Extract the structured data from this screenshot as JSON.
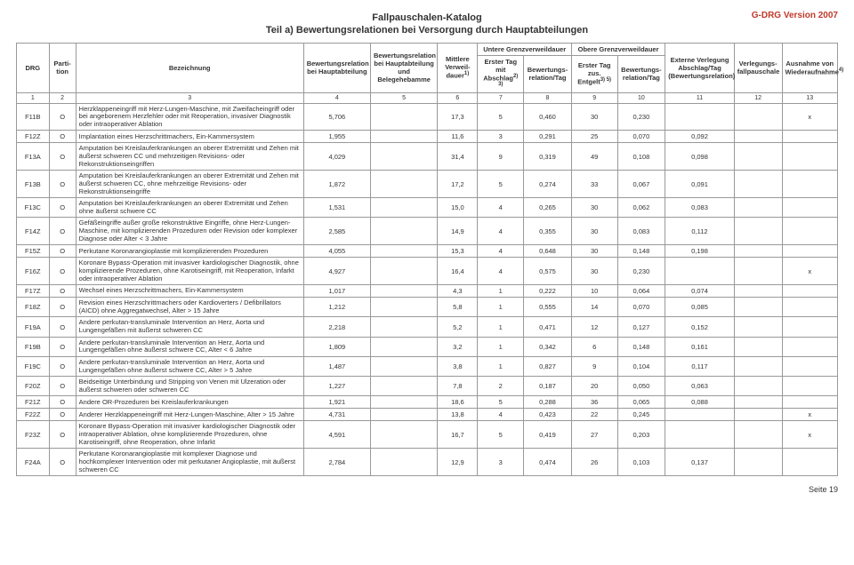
{
  "meta": {
    "version": "G-DRG Version 2007",
    "title1": "Fallpauschalen-Katalog",
    "title2": "Teil a) Bewertungsrelationen bei Versorgung durch Hauptabteilungen",
    "footer": "Seite 19"
  },
  "header": {
    "c1": "DRG",
    "c2": "Parti-\ntion",
    "c3": "Bezeichnung",
    "c4": "Bewertungsrelation bei Hauptabteilung",
    "c5": "Bewertungsrelation bei Hauptabteilung und Belegehebamme",
    "c6": "Mittlere Verweil-\ndauer",
    "g1": "Untere Grenzverweildauer",
    "c7": "Erster Tag mit Abschlag",
    "c8": "Bewertungs-\nrelation/Tag",
    "g2": "Obere Grenzverweildauer",
    "c9": "Erster Tag zus. Entgelt",
    "c10": "Bewertungs-\nrelation/Tag",
    "c11": "Externe Verlegung Abschlag/Tag (Bewertungsrelation)",
    "c12": "Verlegungs-\nfallpauschale",
    "c13": "Ausnahme von Wiederaufnahme",
    "sup6": "1)",
    "sup7": "2) 3)",
    "sup9": "3) 5)",
    "sup13": "4)"
  },
  "colnums": [
    "1",
    "2",
    "3",
    "4",
    "5",
    "6",
    "7",
    "8",
    "9",
    "10",
    "11",
    "12",
    "13"
  ],
  "rows": [
    {
      "drg": "F11B",
      "part": "O",
      "desc": "Herzklappeneingriff mit Herz-Lungen-Maschine, mit Zweifacheingriff oder bei angeborenem Herzfehler oder mit Reoperation, invasiver Diagnostik oder intraoperativer Ablation",
      "c4": "5,706",
      "c5": "",
      "c6": "17,3",
      "c7": "5",
      "c8": "0,460",
      "c9": "30",
      "c10": "0,230",
      "c11": "",
      "c12": "",
      "c13": "x",
      "sec": true
    },
    {
      "drg": "F12Z",
      "part": "O",
      "desc": "Implantation eines Herzschrittmachers, Ein-Kammersystem",
      "c4": "1,955",
      "c5": "",
      "c6": "11,6",
      "c7": "3",
      "c8": "0,291",
      "c9": "25",
      "c10": "0,070",
      "c11": "0,092",
      "c12": "",
      "c13": "",
      "sec": true
    },
    {
      "drg": "F13A",
      "part": "O",
      "desc": "Amputation bei Kreislauferkrankungen an oberer Extremität und Zehen mit äußerst schweren CC und mehrzeitigen Revisions- oder Rekonstruktionseingriffen",
      "c4": "4,029",
      "c5": "",
      "c6": "31,4",
      "c7": "9",
      "c8": "0,319",
      "c9": "49",
      "c10": "0,108",
      "c11": "0,098",
      "c12": "",
      "c13": ""
    },
    {
      "drg": "F13B",
      "part": "O",
      "desc": "Amputation bei Kreislauferkrankungen an oberer Extremität und Zehen mit äußerst schweren CC, ohne mehrzeitige Revisions- oder Rekonstruktionseingriffe",
      "c4": "1,872",
      "c5": "",
      "c6": "17,2",
      "c7": "5",
      "c8": "0,274",
      "c9": "33",
      "c10": "0,067",
      "c11": "0,091",
      "c12": "",
      "c13": ""
    },
    {
      "drg": "F13C",
      "part": "O",
      "desc": "Amputation bei Kreislauferkrankungen an oberer Extremität und Zehen ohne äußerst schwere CC",
      "c4": "1,531",
      "c5": "",
      "c6": "15,0",
      "c7": "4",
      "c8": "0,265",
      "c9": "30",
      "c10": "0,062",
      "c11": "0,083",
      "c12": "",
      "c13": ""
    },
    {
      "drg": "F14Z",
      "part": "O",
      "desc": "Gefäßeingriffe außer große rekonstruktive Eingriffe, ohne Herz-Lungen-Maschine, mit komplizierenden Prozeduren oder Revision oder komplexer Diagnose oder Alter < 3 Jahre",
      "c4": "2,585",
      "c5": "",
      "c6": "14,9",
      "c7": "4",
      "c8": "0,355",
      "c9": "30",
      "c10": "0,083",
      "c11": "0,112",
      "c12": "",
      "c13": ""
    },
    {
      "drg": "F15Z",
      "part": "O",
      "desc": "Perkutane Koronarangioplastie mit komplizierenden Prozeduren",
      "c4": "4,055",
      "c5": "",
      "c6": "15,3",
      "c7": "4",
      "c8": "0,648",
      "c9": "30",
      "c10": "0,148",
      "c11": "0,198",
      "c12": "",
      "c13": "",
      "sec": true
    },
    {
      "drg": "F16Z",
      "part": "O",
      "desc": "Koronare Bypass-Operation mit invasiver kardiologischer Diagnostik, ohne komplizierende Prozeduren, ohne Karotiseingriff, mit Reoperation, Infarkt oder intraoperativer Ablation",
      "c4": "4,927",
      "c5": "",
      "c6": "16,4",
      "c7": "4",
      "c8": "0,575",
      "c9": "30",
      "c10": "0,230",
      "c11": "",
      "c12": "",
      "c13": "x"
    },
    {
      "drg": "F17Z",
      "part": "O",
      "desc": "Wechsel eines Herzschrittmachers, Ein-Kammersystem",
      "c4": "1,017",
      "c5": "",
      "c6": "4,3",
      "c7": "1",
      "c8": "0,222",
      "c9": "10",
      "c10": "0,064",
      "c11": "0,074",
      "c12": "",
      "c13": ""
    },
    {
      "drg": "F18Z",
      "part": "O",
      "desc": "Revision eines Herzschrittmachers oder Kardioverters / Defibrillators (AICD) ohne Aggregatwechsel, Alter > 15 Jahre",
      "c4": "1,212",
      "c5": "",
      "c6": "5,8",
      "c7": "1",
      "c8": "0,555",
      "c9": "14",
      "c10": "0,070",
      "c11": "0,085",
      "c12": "",
      "c13": ""
    },
    {
      "drg": "F19A",
      "part": "O",
      "desc": "Andere perkutan-transluminale Intervention an Herz, Aorta und Lungengefäßen mit äußerst schweren CC",
      "c4": "2,218",
      "c5": "",
      "c6": "5,2",
      "c7": "1",
      "c8": "0,471",
      "c9": "12",
      "c10": "0,127",
      "c11": "0,152",
      "c12": "",
      "c13": ""
    },
    {
      "drg": "F19B",
      "part": "O",
      "desc": "Andere perkutan-transluminale Intervention an Herz, Aorta und Lungengefäßen ohne äußerst schwere CC, Alter < 6 Jahre",
      "c4": "1,809",
      "c5": "",
      "c6": "3,2",
      "c7": "1",
      "c8": "0,342",
      "c9": "6",
      "c10": "0,148",
      "c11": "0,161",
      "c12": "",
      "c13": ""
    },
    {
      "drg": "F19C",
      "part": "O",
      "desc": "Andere perkutan-transluminale Intervention an Herz, Aorta und Lungengefäßen ohne äußerst schwere CC, Alter > 5 Jahre",
      "c4": "1,487",
      "c5": "",
      "c6": "3,8",
      "c7": "1",
      "c8": "0,827",
      "c9": "9",
      "c10": "0,104",
      "c11": "0,117",
      "c12": "",
      "c13": "",
      "sec": true
    },
    {
      "drg": "F20Z",
      "part": "O",
      "desc": "Beidseitige Unterbindung und Stripping von Venen mit Ulzeration oder äußerst schweren oder schweren CC",
      "c4": "1,227",
      "c5": "",
      "c6": "7,8",
      "c7": "2",
      "c8": "0,187",
      "c9": "20",
      "c10": "0,050",
      "c11": "0,063",
      "c12": "",
      "c13": "",
      "sec": true
    },
    {
      "drg": "F21Z",
      "part": "O",
      "desc": "Andere OR-Prozeduren bei Kreislauferkrankungen",
      "c4": "1,921",
      "c5": "",
      "c6": "18,6",
      "c7": "5",
      "c8": "0,288",
      "c9": "36",
      "c10": "0,065",
      "c11": "0,088",
      "c12": "",
      "c13": ""
    },
    {
      "drg": "F22Z",
      "part": "O",
      "desc": "Anderer Herzklappeneingriff mit Herz-Lungen-Maschine, Alter > 15 Jahre",
      "c4": "4,731",
      "c5": "",
      "c6": "13,8",
      "c7": "4",
      "c8": "0,423",
      "c9": "22",
      "c10": "0,245",
      "c11": "",
      "c12": "",
      "c13": "x"
    },
    {
      "drg": "F23Z",
      "part": "O",
      "desc": "Koronare Bypass-Operation mit invasiver kardiologischer Diagnostik oder intraoperativer Ablation, ohne komplizierende Prozeduren, ohne Karotiseingriff, ohne Reoperation, ohne Infarkt",
      "c4": "4,591",
      "c5": "",
      "c6": "16,7",
      "c7": "5",
      "c8": "0,419",
      "c9": "27",
      "c10": "0,203",
      "c11": "",
      "c12": "",
      "c13": "x",
      "sec": true
    },
    {
      "drg": "F24A",
      "part": "O",
      "desc": "Perkutane Koronarangioplastie mit komplexer Diagnose und hochkomplexer Intervention oder mit perkutaner Angioplastie, mit äußerst schweren CC",
      "c4": "2,784",
      "c5": "",
      "c6": "12,9",
      "c7": "3",
      "c8": "0,474",
      "c9": "26",
      "c10": "0,103",
      "c11": "0,137",
      "c12": "",
      "c13": "",
      "sec": true
    }
  ],
  "widths": [
    "34px",
    "28px",
    "238px",
    "70px",
    "70px",
    "42px",
    "48px",
    "50px",
    "48px",
    "50px",
    "72px",
    "50px",
    "58px"
  ]
}
